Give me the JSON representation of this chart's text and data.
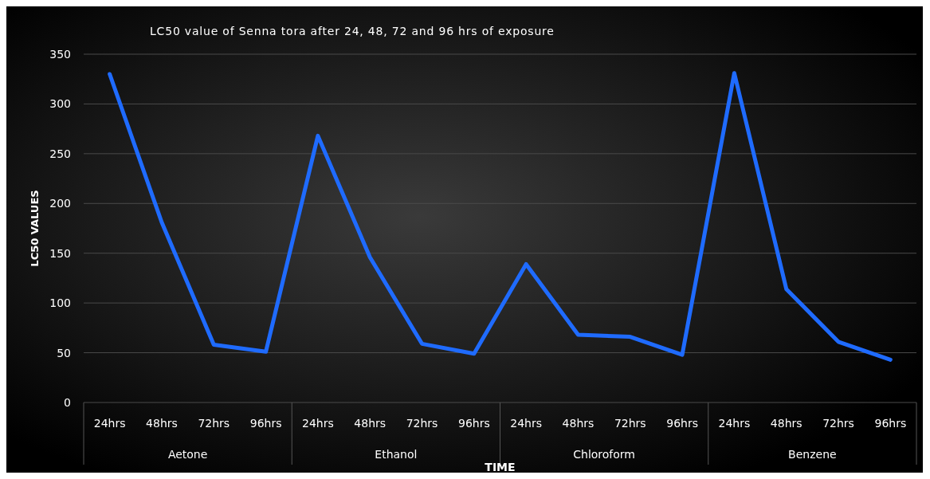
{
  "chart_data": {
    "type": "line",
    "title": "LC50 value of Senna tora after 24, 48, 72 and 96 hrs of exposure",
    "xlabel": "TIME",
    "ylabel": "LC50 VALUES",
    "categories": [
      "24hrs",
      "48hrs",
      "72hrs",
      "96hrs",
      "24hrs",
      "48hrs",
      "72hrs",
      "96hrs",
      "24hrs",
      "48hrs",
      "72hrs",
      "96hrs",
      "24hrs",
      "48hrs",
      "72hrs",
      "96hrs"
    ],
    "annotations": [
      "Aetone",
      "Ethanol",
      "Chloroform",
      "Benzene"
    ],
    "series": [
      {
        "color": "#1f6bff",
        "values": [
          330,
          181,
          58,
          51,
          268,
          146,
          59,
          49,
          139,
          68,
          66,
          48,
          331,
          114,
          61,
          43
        ]
      }
    ],
    "ylim": [
      0,
      350
    ],
    "yticks": [
      0,
      50,
      100,
      150,
      200,
      250,
      300,
      350
    ],
    "grid": "y",
    "marker": "none",
    "line_style": "solid"
  }
}
